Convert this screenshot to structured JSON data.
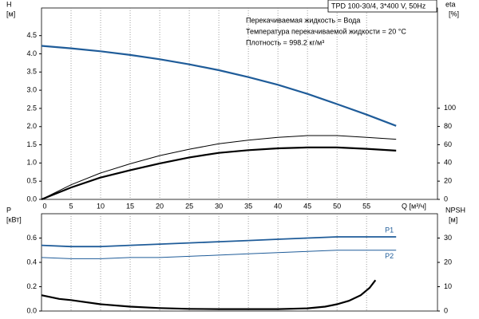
{
  "chart_data": [
    {
      "type": "line",
      "title": "TPD 100-30/4, 3*400 V, 50Hz",
      "annotations": [
        "Перекачиваемая жидкость = Вода",
        "Температура перекачиваемой жидкости = 20 °C",
        "Плотность = 998.2 кг/м³"
      ],
      "ylabel": "H",
      "yunit": "[м]",
      "y2label": "eta",
      "y2unit": "[%]",
      "xlabel": "Q [м³/ч]",
      "xlim": [
        0,
        67
      ],
      "xticks": [
        0,
        5,
        10,
        15,
        20,
        25,
        30,
        35,
        40,
        45,
        50,
        55
      ],
      "ylim": [
        0,
        5.26
      ],
      "yticks": [
        {
          "value": 0,
          "label": "0.0"
        },
        0.5,
        {
          "value": 1,
          "label": "1.0"
        },
        1.5,
        {
          "value": 2,
          "label": "2.0"
        },
        2.5,
        {
          "value": 3,
          "label": "3.0"
        },
        3.5,
        {
          "value": 4,
          "label": "4.0"
        },
        4.5
      ],
      "y2lim": [
        0,
        210
      ],
      "y2ticks": [
        0,
        20,
        40,
        60,
        80,
        100
      ],
      "grid": true,
      "series": [
        {
          "color": "#1f5c99",
          "width": 2.2,
          "x": [
            0,
            5,
            10,
            15,
            20,
            25,
            30,
            35,
            40,
            45,
            50,
            55,
            60
          ],
          "values": [
            4.22,
            4.15,
            4.07,
            3.97,
            3.85,
            3.71,
            3.55,
            3.36,
            3.15,
            2.9,
            2.62,
            2.33,
            2.02
          ]
        },
        {
          "color": "#000000",
          "width": 1,
          "axis": "y2",
          "x": [
            0,
            5,
            10,
            15,
            20,
            25,
            30,
            35,
            40,
            45,
            50,
            55,
            60
          ],
          "values": [
            0,
            16,
            29,
            39,
            48,
            55,
            61,
            65,
            68,
            70,
            70,
            68,
            66
          ]
        },
        {
          "color": "#000000",
          "width": 2.2,
          "axis": "y2",
          "x": [
            0,
            5,
            10,
            15,
            20,
            25,
            30,
            35,
            40,
            45,
            50,
            55,
            60
          ],
          "values": [
            0,
            13,
            24,
            32,
            39.5,
            46,
            51,
            54,
            56,
            57,
            57,
            55.5,
            53.5
          ]
        }
      ]
    },
    {
      "type": "line",
      "ylabel": "P",
      "yunit": "[кВт]",
      "y2label": "NPSH",
      "y2unit": "[м]",
      "xlim": [
        0,
        67
      ],
      "ylim": [
        0,
        0.8
      ],
      "yticks": [
        {
          "value": 0,
          "label": "0.0"
        },
        0.2,
        0.4,
        0.6
      ],
      "y2lim": [
        0,
        40
      ],
      "y2ticks": [
        0,
        10,
        20,
        30
      ],
      "grid": true,
      "series": [
        {
          "name": "P1",
          "color": "#1f5c99",
          "width": 1.8,
          "x": [
            0,
            5,
            10,
            15,
            20,
            25,
            30,
            35,
            40,
            45,
            50,
            55,
            60
          ],
          "values": [
            0.54,
            0.53,
            0.53,
            0.54,
            0.55,
            0.56,
            0.57,
            0.58,
            0.59,
            0.6,
            0.61,
            0.61,
            0.61
          ]
        },
        {
          "name": "P2",
          "color": "#1f5c99",
          "width": 1,
          "x": [
            0,
            5,
            10,
            15,
            20,
            25,
            30,
            35,
            40,
            45,
            50,
            55,
            60
          ],
          "values": [
            0.44,
            0.43,
            0.43,
            0.44,
            0.44,
            0.45,
            0.46,
            0.47,
            0.48,
            0.49,
            0.5,
            0.5,
            0.5
          ]
        },
        {
          "color": "#000000",
          "width": 2.2,
          "axis": "y2",
          "x": [
            0,
            3,
            5,
            10,
            15,
            20,
            25,
            30,
            35,
            40,
            45,
            48,
            50,
            52,
            54,
            55.5,
            56.5
          ],
          "values": [
            6.5,
            5,
            4.5,
            2.8,
            1.8,
            1.2,
            0.9,
            0.8,
            0.8,
            0.8,
            1.1,
            1.8,
            2.8,
            4.2,
            6.5,
            9.5,
            12.7
          ]
        }
      ]
    }
  ]
}
